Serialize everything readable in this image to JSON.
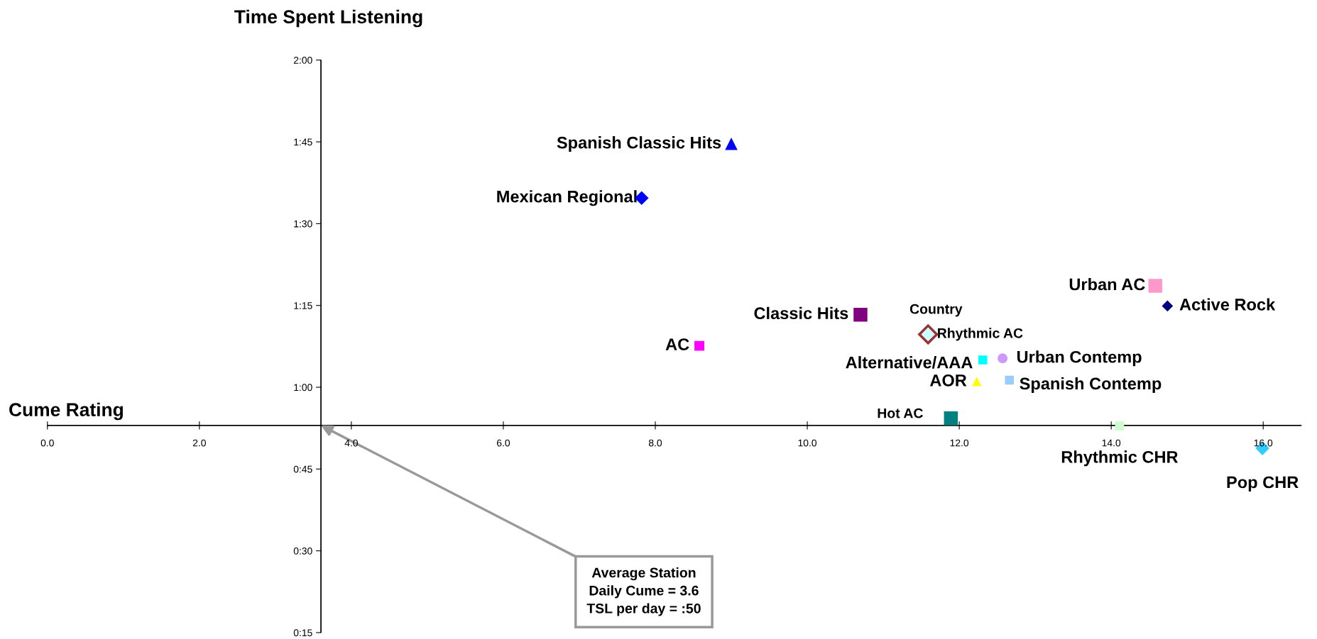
{
  "chart_data": {
    "type": "scatter",
    "xlabel": "Cume Rating",
    "ylabel": "Time Spent Listening",
    "xlim": [
      0,
      16.5
    ],
    "xticks": [
      {
        "value": 0,
        "label": "0.0"
      },
      {
        "value": 2,
        "label": "2.0"
      },
      {
        "value": 4,
        "label": "4.0"
      },
      {
        "value": 6,
        "label": "6.0"
      },
      {
        "value": 8,
        "label": "8.0"
      },
      {
        "value": 10,
        "label": "10.0"
      },
      {
        "value": 12,
        "label": "12.0"
      },
      {
        "value": 14,
        "label": "14.0"
      },
      {
        "value": 16,
        "label": "16.0"
      }
    ],
    "ylim": [
      15,
      120
    ],
    "yticks": [
      {
        "value": 15,
        "label": "0:15"
      },
      {
        "value": 30,
        "label": "0:30"
      },
      {
        "value": 45,
        "label": "0:45"
      },
      {
        "value": 60,
        "label": "1:00"
      },
      {
        "value": 75,
        "label": "1:15"
      },
      {
        "value": 90,
        "label": "1:30"
      },
      {
        "value": 105,
        "label": "1:45"
      },
      {
        "value": 120,
        "label": "2:00"
      }
    ],
    "ref_lines": [
      {
        "axis": "x",
        "value": 3.6,
        "color": "#000000"
      },
      {
        "axis": "y",
        "value": 53,
        "color": "#000000"
      }
    ],
    "grid": false,
    "legend": false,
    "series": [
      {
        "name": "Spanish Classic Hits",
        "color": "#0000ff",
        "marker": "triangle",
        "x": [
          9.0
        ],
        "values": [
          104.6
        ]
      },
      {
        "name": "Mexican Regional",
        "color": "#0000ff",
        "marker": "diamond",
        "x": [
          7.82
        ],
        "values": [
          94.7
        ]
      },
      {
        "name": "AC",
        "color": "#ff00ff",
        "marker": "square",
        "x": [
          8.58
        ],
        "values": [
          67.6
        ]
      },
      {
        "name": "Classic Hits",
        "color": "#800080",
        "marker": "square",
        "x": [
          10.7
        ],
        "values": [
          73.3
        ]
      },
      {
        "name": "Country",
        "color": "#993333",
        "marker": "diamond",
        "x": [
          11.59
        ],
        "values": [
          69.7
        ]
      },
      {
        "name": "Rhythmic AC",
        "color": "#ccffff",
        "marker": "diamond",
        "x": [
          11.59
        ],
        "values": [
          69.7
        ]
      },
      {
        "name": "Alternative/AAA",
        "color": "#00ffff",
        "marker": "square",
        "x": [
          12.31
        ],
        "values": [
          65.0
        ]
      },
      {
        "name": "Urban Contemp",
        "color": "#cc99ff",
        "marker": "circle",
        "x": [
          12.57
        ],
        "values": [
          65.3
        ]
      },
      {
        "name": "AOR",
        "color": "#ffff00",
        "marker": "triangle",
        "x": [
          12.23
        ],
        "values": [
          61.0
        ]
      },
      {
        "name": "Spanish Contemp",
        "color": "#99ccff",
        "marker": "square",
        "x": [
          12.66
        ],
        "values": [
          61.3
        ]
      },
      {
        "name": "Hot AC",
        "color": "#008080",
        "marker": "square",
        "x": [
          11.89
        ],
        "values": [
          54.3
        ]
      },
      {
        "name": "Rhythmic CHR",
        "color": "#ccffcc",
        "marker": "square",
        "x": [
          14.11
        ],
        "values": [
          52.9
        ]
      },
      {
        "name": "Pop CHR",
        "color": "#33ccff",
        "marker": "diamond",
        "x": [
          15.99
        ],
        "values": [
          48.8
        ]
      },
      {
        "name": "Urban AC",
        "color": "#ff99cc",
        "marker": "square",
        "x": [
          14.58
        ],
        "values": [
          78.6
        ]
      },
      {
        "name": "Active Rock",
        "color": "#000080",
        "marker": "diamond",
        "x": [
          14.74
        ],
        "values": [
          74.9
        ]
      }
    ],
    "annotations": [
      "Average Station\nDaily Cume = 3.6\nTSL per day = :50"
    ]
  }
}
